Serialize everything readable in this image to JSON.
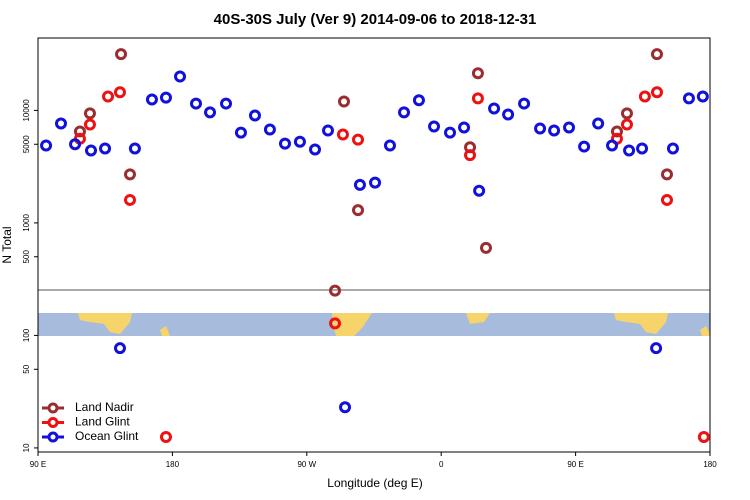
{
  "chart_data": {
    "type": "scatter",
    "title": "40S-30S July (Ver 9)   2014-09-06 to 2018-12-31",
    "x_label": "Longitude (deg E)",
    "y_label": "N Total",
    "log_y": true,
    "legend": "lower left",
    "xlim": [
      90,
      540
    ],
    "xticks": [
      {
        "value": 90,
        "label": "90 E"
      },
      180,
      {
        "value": 270,
        "label": "90 W"
      },
      {
        "value": 360,
        "label": "0"
      },
      {
        "value": 450,
        "label": "90 E"
      },
      {
        "value": 540,
        "label": "180"
      }
    ],
    "ylim": [
      9.2,
      44000
    ],
    "yticks": [
      10,
      50,
      100,
      500,
      1000,
      5000,
      10000
    ],
    "series": [
      {
        "name": "Land Nadir",
        "color": "#9b2d30",
        "x": [
          118.1,
          124.8,
          145.6,
          151.6,
          288.9,
          294.9,
          304.3,
          379.3,
          384.6,
          390.0,
          477.7,
          484.4,
          504.5,
          511.2
        ],
        "values": [
          6500,
          9400,
          31600,
          2700,
          250,
          12000,
          1300,
          4700,
          21400,
          600,
          6500,
          9400,
          31600,
          2700
        ]
      },
      {
        "name": "Land Glint",
        "color": "#ee1111",
        "x": [
          118.1,
          124.8,
          136.9,
          144.9,
          151.6,
          175.7,
          288.9,
          294.2,
          304.3,
          379.3,
          384.6,
          477.7,
          484.4,
          496.4,
          504.5,
          511.2,
          535.9
        ],
        "values": [
          5600,
          7500,
          13300,
          14500,
          1600,
          12.5,
          128,
          6100,
          5500,
          4000,
          12800,
          5600,
          7500,
          13300,
          14500,
          1600,
          12.5
        ]
      },
      {
        "name": "Ocean Glint",
        "color": "#1111dd",
        "x": [
          95.4,
          105.4,
          114.8,
          125.5,
          134.9,
          144.9,
          154.9,
          166.3,
          175.7,
          185.1,
          195.8,
          205.2,
          215.9,
          225.9,
          235.3,
          245.3,
          255.4,
          265.4,
          275.5,
          284.2,
          295.6,
          305.6,
          315.7,
          325.7,
          335.1,
          345.1,
          355.2,
          365.9,
          375.3,
          385.4,
          395.4,
          404.8,
          415.5,
          426.2,
          435.6,
          445.6,
          455.7,
          465.1,
          474.4,
          485.8,
          494.5,
          503.9,
          515.2,
          525.9,
          535.2
        ],
        "values": [
          4870,
          7650,
          5000,
          4400,
          4580,
          77,
          4580,
          12500,
          13000,
          20000,
          11500,
          9600,
          11500,
          6350,
          9000,
          6770,
          5070,
          5260,
          4490,
          6630,
          23,
          2180,
          2280,
          4870,
          9600,
          12300,
          7200,
          6350,
          7050,
          1930,
          10400,
          9200,
          11500,
          6900,
          6630,
          7050,
          4770,
          7650,
          4870,
          4400,
          4580,
          77,
          4580,
          12800,
          13300
        ]
      }
    ]
  }
}
